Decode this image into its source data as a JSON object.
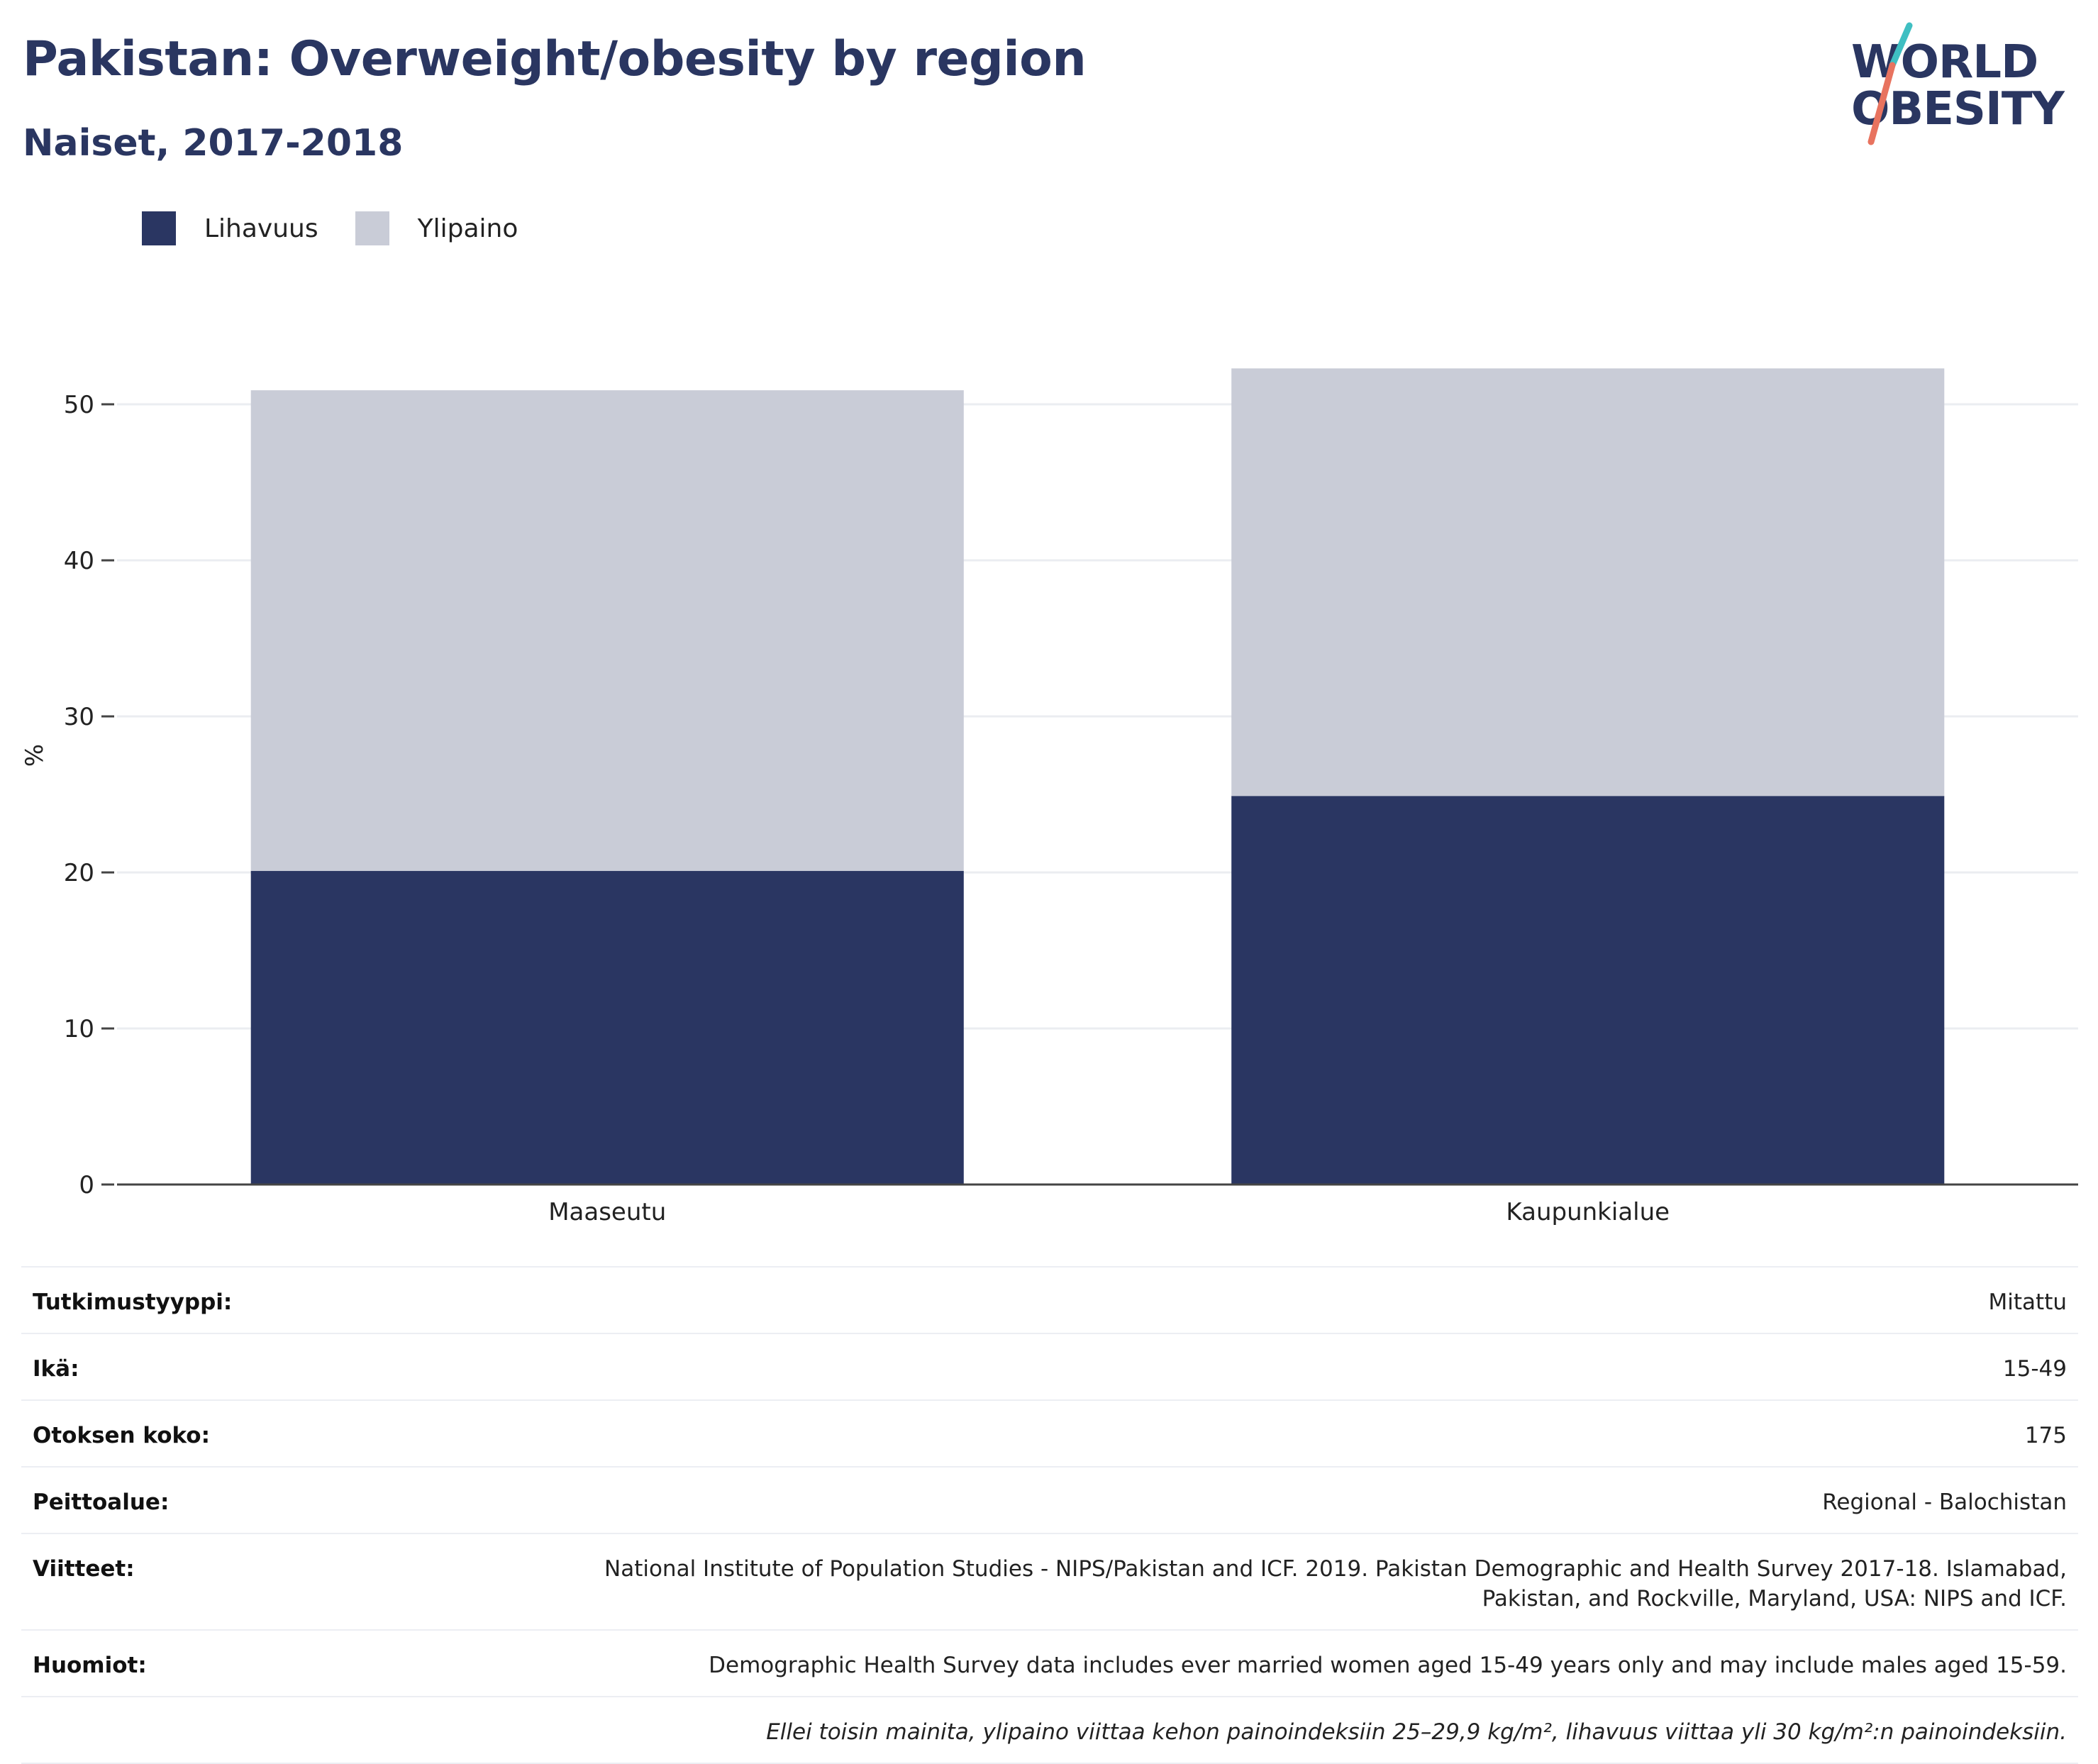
{
  "header": {
    "title": "Pakistan: Overweight/obesity by region",
    "subtitle": "Naiset, 2017-2018"
  },
  "logo": {
    "line1": "WORLD",
    "line2": "OBESITY",
    "colors": {
      "text": "#2a3661",
      "slash_top": "#3fbfc2",
      "slash_bottom": "#e8735f"
    }
  },
  "legend": [
    {
      "label": "Lihavuus",
      "color": "#2a3662"
    },
    {
      "label": "Ylipaino",
      "color": "#c9ccd7"
    }
  ],
  "chart_data": {
    "type": "bar",
    "stacked": true,
    "categories": [
      "Maaseutu",
      "Kaupunkialue"
    ],
    "series": [
      {
        "name": "Lihavuus",
        "values": [
          20.1,
          24.9
        ],
        "color": "#2a3662"
      },
      {
        "name": "Ylipaino",
        "values": [
          30.8,
          27.4
        ],
        "color": "#c9ccd7"
      }
    ],
    "title": "Pakistan: Overweight/obesity by region",
    "subtitle": "Naiset, 2017-2018",
    "xlabel": "",
    "ylabel": "%",
    "ylim": [
      0,
      55
    ],
    "yticks": [
      0,
      10,
      20,
      30,
      40,
      50
    ],
    "grid": true,
    "legend_position": "top-left"
  },
  "metadata": [
    {
      "label": "Tutkimustyyppi:",
      "value": "Mitattu"
    },
    {
      "label": "Ikä:",
      "value": "15-49"
    },
    {
      "label": "Otoksen koko:",
      "value": "175"
    },
    {
      "label": "Peittoalue:",
      "value": "Regional - Balochistan"
    },
    {
      "label": "Viitteet:",
      "value": "National Institute of Population Studies - NIPS/Pakistan and ICF. 2019. Pakistan Demographic and Health Survey 2017-18. Islamabad, Pakistan, and Rockville, Maryland, USA: NIPS and ICF."
    },
    {
      "label": "Huomiot:",
      "value": "Demographic Health Survey data includes ever married women aged 15-49 years only and may include males aged 15-59."
    }
  ],
  "footnote": "Ellei toisin mainita, ylipaino viittaa kehon painoindeksiin 25–29,9 kg/m², lihavuus viittaa yli 30 kg/m²:n painoindeksiin."
}
